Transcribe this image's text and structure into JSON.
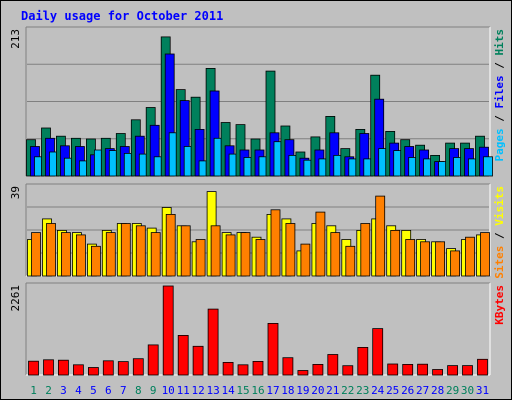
{
  "chart_data": [
    {
      "type": "bar",
      "title": "Daily usage for October 2011",
      "categories": [
        "1",
        "2",
        "3",
        "4",
        "5",
        "6",
        "7",
        "8",
        "9",
        "10",
        "11",
        "12",
        "13",
        "14",
        "15",
        "16",
        "17",
        "18",
        "19",
        "20",
        "21",
        "22",
        "23",
        "24",
        "25",
        "26",
        "27",
        "28",
        "29",
        "30",
        "31"
      ],
      "weekend_days": [
        "1",
        "2",
        "8",
        "9",
        "15",
        "16",
        "22",
        "23",
        "29",
        "30"
      ],
      "ymax_label": "213",
      "ylim": [
        0,
        213
      ],
      "grid": true,
      "ylabel_parts": [
        "Pages",
        "Files",
        "Hits"
      ],
      "series": [
        {
          "name": "Hits",
          "color": "#00805c",
          "values": [
            53,
            70,
            58,
            55,
            54,
            55,
            62,
            82,
            100,
            203,
            126,
            115,
            157,
            78,
            75,
            54,
            153,
            73,
            35,
            57,
            87,
            40,
            68,
            147,
            65,
            53,
            45,
            30,
            48,
            48,
            58
          ]
        },
        {
          "name": "Files",
          "color": "#0000ff",
          "values": [
            43,
            55,
            44,
            43,
            31,
            40,
            43,
            58,
            74,
            178,
            110,
            68,
            124,
            44,
            38,
            38,
            63,
            53,
            26,
            38,
            63,
            28,
            62,
            112,
            48,
            43,
            38,
            21,
            40,
            40,
            42
          ]
        },
        {
          "name": "Pages",
          "color": "#00c0ff",
          "values": [
            28,
            35,
            26,
            22,
            38,
            37,
            33,
            32,
            28,
            63,
            43,
            22,
            55,
            32,
            27,
            28,
            50,
            30,
            23,
            25,
            30,
            25,
            25,
            40,
            37,
            27,
            25,
            21,
            27,
            25,
            28
          ]
        }
      ]
    },
    {
      "type": "bar",
      "ymax_label": "39",
      "ylim": [
        0,
        39
      ],
      "grid": true,
      "ylabel_parts": [
        "Sites",
        "Visits"
      ],
      "series": [
        {
          "name": "Visits",
          "color": "#ffff00",
          "values": [
            16,
            25,
            20,
            19,
            14,
            20,
            23,
            23,
            21,
            30,
            22,
            15,
            37,
            19,
            19,
            17,
            27,
            25,
            11,
            23,
            22,
            16,
            20,
            25,
            22,
            20,
            16,
            15,
            12,
            16,
            18
          ]
        },
        {
          "name": "Sites",
          "color": "#ff8000",
          "values": [
            19,
            23,
            19,
            18,
            13,
            19,
            23,
            22,
            19,
            27,
            22,
            16,
            22,
            18,
            19,
            16,
            29,
            23,
            14,
            28,
            19,
            13,
            23,
            35,
            20,
            16,
            15,
            15,
            11,
            17,
            19
          ]
        }
      ]
    },
    {
      "type": "bar",
      "ymax_label": "2261",
      "ylim": [
        0,
        2261
      ],
      "grid": false,
      "ylabel_parts": [
        "KBytes"
      ],
      "series": [
        {
          "name": "KBytes",
          "color": "#ff0000",
          "values": [
            350,
            385,
            375,
            260,
            190,
            360,
            340,
            415,
            765,
            2261,
            1005,
            730,
            1675,
            320,
            260,
            345,
            1310,
            440,
            115,
            270,
            520,
            235,
            700,
            1180,
            280,
            270,
            275,
            140,
            240,
            240,
            400
          ]
        }
      ]
    }
  ],
  "colors": {
    "background": "#c0c0c0",
    "title_color": "#0000ff",
    "weekday_label_color": "#0000ff",
    "weekend_label_color": "#00805c",
    "grid_line": "#808080"
  }
}
